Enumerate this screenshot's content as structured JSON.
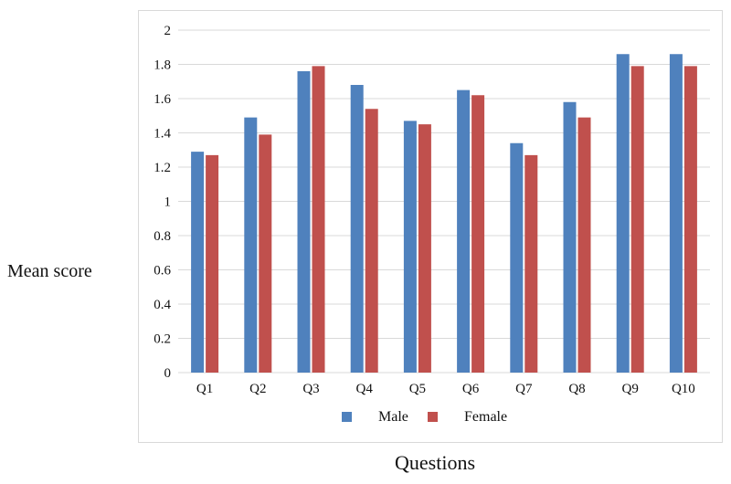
{
  "chart_data": {
    "type": "bar",
    "title": "",
    "xlabel": "Questions",
    "ylabel": "Mean score",
    "categories": [
      "Q1",
      "Q2",
      "Q3",
      "Q4",
      "Q5",
      "Q6",
      "Q7",
      "Q8",
      "Q9",
      "Q10"
    ],
    "series": [
      {
        "name": "Male",
        "color": "#4f81bd",
        "values": [
          1.29,
          1.49,
          1.76,
          1.68,
          1.47,
          1.65,
          1.34,
          1.58,
          1.86,
          1.86
        ]
      },
      {
        "name": "Female",
        "color": "#c0504d",
        "values": [
          1.27,
          1.39,
          1.79,
          1.54,
          1.45,
          1.62,
          1.27,
          1.49,
          1.79,
          1.79
        ]
      }
    ],
    "ylim": [
      0,
      2
    ],
    "yticks": [
      "0",
      "0.2",
      "0.4",
      "0.6",
      "0.8",
      "1",
      "1.2",
      "1.4",
      "1.6",
      "1.8",
      "2"
    ],
    "grid": true,
    "legend": "bottom"
  }
}
